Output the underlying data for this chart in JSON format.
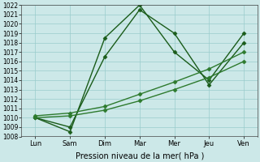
{
  "x_labels": [
    "Lun",
    "Sam",
    "Dim",
    "Mar",
    "Mer",
    "Jeu",
    "Ven"
  ],
  "x_positions": [
    0,
    1,
    2,
    3,
    4,
    5,
    6
  ],
  "line_volatile1": [
    1010.0,
    1009.0,
    1016.5,
    1021.5,
    1019.0,
    1013.5,
    1018.0
  ],
  "line_volatile2": [
    1010.0,
    1008.5,
    1018.5,
    1022.0,
    1017.0,
    1014.0,
    1019.0
  ],
  "line_trend1": [
    1010.2,
    1010.5,
    1011.2,
    1012.5,
    1013.8,
    1015.2,
    1017.0
  ],
  "line_trend2": [
    1010.0,
    1010.2,
    1010.8,
    1011.8,
    1013.0,
    1014.3,
    1016.0
  ],
  "ylim": [
    1008,
    1022
  ],
  "yticks": [
    1008,
    1009,
    1010,
    1011,
    1012,
    1013,
    1014,
    1015,
    1016,
    1017,
    1018,
    1019,
    1020,
    1021,
    1022
  ],
  "line_color_dark": "#1a5c1a",
  "line_color_medium": "#2d7a2d",
  "bg_color": "#cce8e8",
  "grid_color": "#99cccc",
  "xlabel": "Pression niveau de la mer( hPa )",
  "marker": "D",
  "markersize": 2.5,
  "linewidth": 1.0
}
